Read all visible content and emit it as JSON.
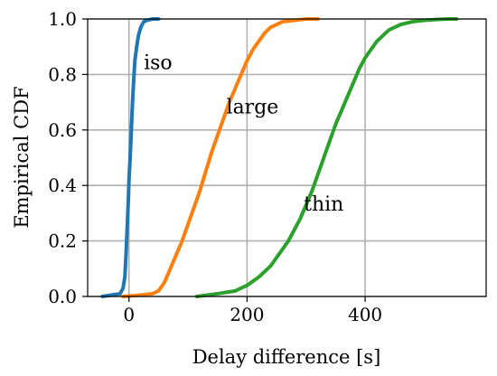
{
  "chart_data": {
    "type": "line",
    "title": "",
    "xlabel": "Delay difference [s]",
    "ylabel": "Empirical CDF",
    "xlim": [
      -70,
      605
    ],
    "ylim": [
      0,
      1.0
    ],
    "xticks": [
      0,
      200,
      400
    ],
    "yticks": [
      0.0,
      0.2,
      0.4,
      0.6,
      0.8,
      1.0
    ],
    "xtick_labels": [
      "0",
      "200",
      "400"
    ],
    "ytick_labels": [
      "0.0",
      "0.2",
      "0.4",
      "0.6",
      "0.8",
      "1.0"
    ],
    "grid": true,
    "legend": "none",
    "annotations": [
      {
        "text": "iso",
        "x": 25,
        "y": 0.82
      },
      {
        "text": "large",
        "x": 165,
        "y": 0.66
      },
      {
        "text": "thin",
        "x": 296,
        "y": 0.31
      }
    ],
    "series": [
      {
        "color": "#1f77b4",
        "x": [
          -45,
          -15,
          -10,
          -7,
          -5,
          -3,
          -1,
          0,
          2,
          4,
          6,
          8,
          10,
          13,
          16,
          20,
          25,
          30,
          40,
          50
        ],
        "y": [
          0.0,
          0.01,
          0.03,
          0.07,
          0.15,
          0.25,
          0.35,
          0.42,
          0.5,
          0.6,
          0.7,
          0.78,
          0.85,
          0.9,
          0.94,
          0.97,
          0.99,
          0.995,
          1.0,
          1.0
        ]
      },
      {
        "color": "#ff7f0e",
        "x": [
          -10,
          20,
          40,
          50,
          60,
          70,
          80,
          90,
          100,
          110,
          120,
          130,
          140,
          150,
          160,
          170,
          180,
          190,
          200,
          210,
          220,
          230,
          240,
          250,
          260,
          280,
          300,
          320
        ],
        "y": [
          0.0,
          0.005,
          0.01,
          0.02,
          0.05,
          0.1,
          0.15,
          0.2,
          0.26,
          0.32,
          0.38,
          0.45,
          0.52,
          0.58,
          0.64,
          0.7,
          0.75,
          0.8,
          0.85,
          0.89,
          0.92,
          0.95,
          0.97,
          0.98,
          0.99,
          0.995,
          1.0,
          1.0
        ]
      },
      {
        "color": "#2ca02c",
        "x": [
          115,
          150,
          180,
          200,
          220,
          240,
          260,
          270,
          280,
          290,
          300,
          310,
          320,
          330,
          340,
          350,
          360,
          370,
          380,
          390,
          400,
          410,
          420,
          430,
          440,
          450,
          460,
          470,
          480,
          500,
          520,
          540,
          555
        ],
        "y": [
          0.0,
          0.01,
          0.02,
          0.04,
          0.07,
          0.11,
          0.17,
          0.2,
          0.24,
          0.28,
          0.33,
          0.38,
          0.44,
          0.5,
          0.56,
          0.62,
          0.67,
          0.72,
          0.77,
          0.82,
          0.86,
          0.89,
          0.92,
          0.94,
          0.96,
          0.97,
          0.98,
          0.985,
          0.99,
          0.995,
          0.998,
          1.0,
          1.0
        ]
      }
    ]
  }
}
